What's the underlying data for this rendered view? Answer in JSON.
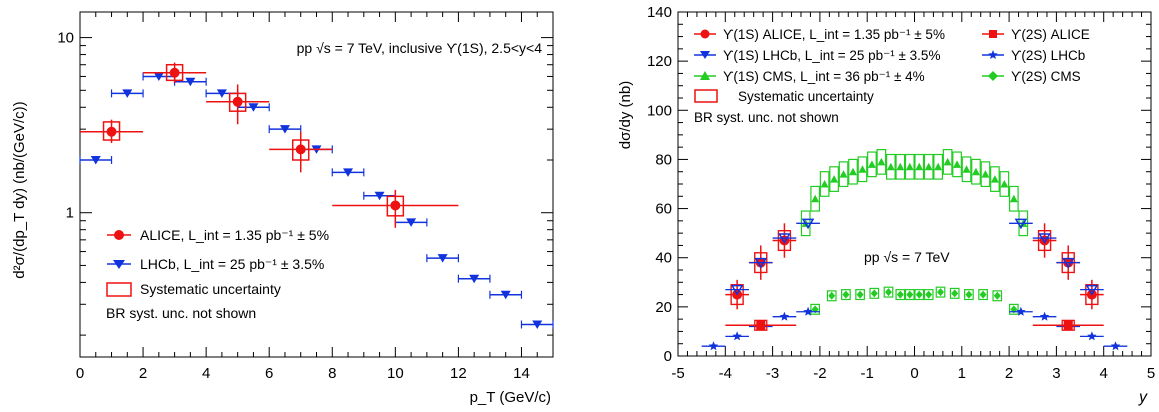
{
  "chart_data": [
    {
      "type": "scatter",
      "x_scale": "linear",
      "y_scale": "log",
      "xlim": [
        0,
        15
      ],
      "ylim": [
        0.15,
        14
      ],
      "xticks": [
        0,
        2,
        4,
        6,
        8,
        10,
        12,
        14
      ],
      "xtick_labels": [
        "0",
        "2",
        "4",
        "6",
        "8",
        "10",
        "12",
        "14"
      ],
      "ytick_major": [
        1,
        10
      ],
      "ytick_labels": [
        "1",
        "10"
      ],
      "xlabel": "p_T (GeV/c)",
      "ylabel": "d²σ/(dp_T dy) (nb/(GeV/c))",
      "annotation": "pp √s = 7 TeV, inclusive ϒ(1S), 2.5<y<4",
      "grid": false,
      "legend_position": "bottom-left",
      "legend": [
        {
          "label": "ALICE, L_int = 1.35 pb⁻¹ ± 5%",
          "marker": "circle",
          "color": "#ee1111"
        },
        {
          "label": "LHCb, L_int = 25 pb⁻¹ ± 3.5%",
          "marker": "triangle-down",
          "color": "#1133dd"
        },
        {
          "label": "Systematic uncertainty",
          "marker": "open-box",
          "color": "#ee1111"
        },
        {
          "label": "BR syst. unc. not shown",
          "marker": "none",
          "color": "#000000"
        }
      ],
      "series": [
        {
          "name": "ALICE",
          "color": "#ee1111",
          "marker": "circle",
          "points": [
            {
              "x": 1,
              "y": 2.9,
              "xerr": 1,
              "ylo": 2.5,
              "yhi": 3.4,
              "syslo": 2.6,
              "syshi": 3.3
            },
            {
              "x": 3,
              "y": 6.3,
              "xerr": 1,
              "ylo": 5.5,
              "yhi": 7.2,
              "syslo": 5.7,
              "syshi": 7.0
            },
            {
              "x": 5,
              "y": 4.3,
              "xerr": 1,
              "ylo": 3.2,
              "yhi": 5.4,
              "syslo": 3.8,
              "syshi": 4.8
            },
            {
              "x": 7,
              "y": 2.3,
              "xerr": 1,
              "ylo": 1.7,
              "yhi": 2.9,
              "syslo": 2.0,
              "syshi": 2.6
            },
            {
              "x": 10,
              "y": 1.1,
              "xerr": 2,
              "ylo": 0.82,
              "yhi": 1.35,
              "syslo": 0.96,
              "syshi": 1.24
            }
          ]
        },
        {
          "name": "LHCb",
          "color": "#1133dd",
          "marker": "triangle-down",
          "points": [
            {
              "x": 0.5,
              "y": 2.0,
              "xerr": 0.5
            },
            {
              "x": 1.5,
              "y": 4.8,
              "xerr": 0.5
            },
            {
              "x": 2.5,
              "y": 6.0,
              "xerr": 0.5
            },
            {
              "x": 3.5,
              "y": 5.6,
              "xerr": 0.5
            },
            {
              "x": 4.5,
              "y": 4.8,
              "xerr": 0.5
            },
            {
              "x": 5.5,
              "y": 4.0,
              "xerr": 0.5
            },
            {
              "x": 6.5,
              "y": 3.0,
              "xerr": 0.5
            },
            {
              "x": 7.5,
              "y": 2.3,
              "xerr": 0.5
            },
            {
              "x": 8.5,
              "y": 1.7,
              "xerr": 0.5
            },
            {
              "x": 9.5,
              "y": 1.25,
              "xerr": 0.5
            },
            {
              "x": 10.5,
              "y": 0.88,
              "xerr": 0.5
            },
            {
              "x": 11.5,
              "y": 0.55,
              "xerr": 0.5
            },
            {
              "x": 12.5,
              "y": 0.42,
              "xerr": 0.5
            },
            {
              "x": 13.5,
              "y": 0.34,
              "xerr": 0.5
            },
            {
              "x": 14.5,
              "y": 0.23,
              "xerr": 0.5
            }
          ]
        }
      ]
    },
    {
      "type": "scatter",
      "x_scale": "linear",
      "y_scale": "linear",
      "xlim": [
        -5,
        5
      ],
      "ylim": [
        0,
        140
      ],
      "xticks": [
        -5,
        -4,
        -3,
        -2,
        -1,
        0,
        1,
        2,
        3,
        4,
        5
      ],
      "xtick_labels": [
        "-5",
        "-4",
        "-3",
        "-2",
        "-1",
        "0",
        "1",
        "2",
        "3",
        "4",
        "5"
      ],
      "yticks": [
        0,
        20,
        40,
        60,
        80,
        100,
        120,
        140
      ],
      "ytick_labels": [
        "0",
        "20",
        "40",
        "60",
        "80",
        "100",
        "120",
        "140"
      ],
      "xlabel": "y",
      "ylabel": "dσ/dy (nb)",
      "annotation": "pp √s = 7 TeV",
      "grid": false,
      "legend_position": "top-left",
      "legend": [
        {
          "label": "ϒ(1S) ALICE, L_int = 1.35 pb⁻¹ ± 5%",
          "marker": "circle",
          "color": "#ee1111"
        },
        {
          "label": "ϒ(1S) LHCb, L_int = 25 pb⁻¹ ± 3.5%",
          "marker": "triangle-down",
          "color": "#1133dd"
        },
        {
          "label": "ϒ(1S) CMS, L_int = 36 pb⁻¹ ± 4%",
          "marker": "triangle-up",
          "color": "#22cc22"
        },
        {
          "label": "ϒ(2S) ALICE",
          "marker": "square",
          "color": "#ee1111"
        },
        {
          "label": "ϒ(2S) LHCb",
          "marker": "star",
          "color": "#1133dd"
        },
        {
          "label": "ϒ(2S) CMS",
          "marker": "diamond",
          "color": "#22cc22"
        },
        {
          "label": "Systematic uncertainty",
          "marker": "open-box",
          "color": "#ee1111"
        },
        {
          "label": "BR syst. unc. not shown",
          "marker": "none",
          "color": "#000000"
        }
      ],
      "series": [
        {
          "name": "ϒ(1S) ALICE",
          "color": "#ee1111",
          "marker": "circle",
          "points": [
            {
              "x": -3.75,
              "y": 25,
              "xerr": 0.25,
              "ylo": 19,
              "yhi": 31,
              "syslo": 21,
              "syshi": 29
            },
            {
              "x": -3.25,
              "y": 38,
              "xerr": 0.25,
              "ylo": 31,
              "yhi": 45,
              "syslo": 34,
              "syshi": 42
            },
            {
              "x": -2.75,
              "y": 47,
              "xerr": 0.25,
              "ylo": 40,
              "yhi": 54,
              "syslo": 43,
              "syshi": 51
            },
            {
              "x": 2.75,
              "y": 47,
              "xerr": 0.25,
              "ylo": 40,
              "yhi": 54,
              "syslo": 43,
              "syshi": 51
            },
            {
              "x": 3.25,
              "y": 38,
              "xerr": 0.25,
              "ylo": 31,
              "yhi": 45,
              "syslo": 34,
              "syshi": 42
            },
            {
              "x": 3.75,
              "y": 25,
              "xerr": 0.25,
              "ylo": 19,
              "yhi": 31,
              "syslo": 21,
              "syshi": 29
            }
          ]
        },
        {
          "name": "ϒ(1S) LHCb",
          "color": "#1133dd",
          "marker": "triangle-down",
          "points": [
            {
              "x": -3.75,
              "y": 27,
              "xerr": 0.25
            },
            {
              "x": -3.25,
              "y": 38,
              "xerr": 0.25
            },
            {
              "x": -2.75,
              "y": 48,
              "xerr": 0.25
            },
            {
              "x": -2.25,
              "y": 54,
              "xerr": 0.25
            },
            {
              "x": 2.25,
              "y": 54,
              "xerr": 0.25
            },
            {
              "x": 2.75,
              "y": 48,
              "xerr": 0.25
            },
            {
              "x": 3.25,
              "y": 38,
              "xerr": 0.25
            },
            {
              "x": 3.75,
              "y": 27,
              "xerr": 0.25
            }
          ]
        },
        {
          "name": "ϒ(1S) CMS",
          "color": "#22cc22",
          "marker": "triangle-up",
          "points": [
            {
              "x": -2.3,
              "y": 54
            },
            {
              "x": -2.1,
              "y": 64
            },
            {
              "x": -1.9,
              "y": 70
            },
            {
              "x": -1.7,
              "y": 72
            },
            {
              "x": -1.5,
              "y": 74
            },
            {
              "x": -1.3,
              "y": 75
            },
            {
              "x": -1.1,
              "y": 76
            },
            {
              "x": -0.9,
              "y": 78
            },
            {
              "x": -0.7,
              "y": 79
            },
            {
              "x": -0.5,
              "y": 77
            },
            {
              "x": -0.3,
              "y": 77
            },
            {
              "x": -0.1,
              "y": 77
            },
            {
              "x": 0.1,
              "y": 77
            },
            {
              "x": 0.3,
              "y": 77
            },
            {
              "x": 0.5,
              "y": 77
            },
            {
              "x": 0.7,
              "y": 79
            },
            {
              "x": 0.9,
              "y": 78
            },
            {
              "x": 1.1,
              "y": 76
            },
            {
              "x": 1.3,
              "y": 75
            },
            {
              "x": 1.5,
              "y": 74
            },
            {
              "x": 1.7,
              "y": 72
            },
            {
              "x": 1.9,
              "y": 70
            },
            {
              "x": 2.1,
              "y": 64
            },
            {
              "x": 2.3,
              "y": 54
            }
          ],
          "sys_half_width": 0.09,
          "sys_half_height": 5
        },
        {
          "name": "ϒ(2S) ALICE",
          "color": "#ee1111",
          "marker": "square",
          "points": [
            {
              "x": -3.25,
              "y": 12.5,
              "xerr": 0.75,
              "ylo": 10.5,
              "yhi": 14.5
            },
            {
              "x": 3.25,
              "y": 12.5,
              "xerr": 0.75,
              "ylo": 10.5,
              "yhi": 14.5
            }
          ]
        },
        {
          "name": "ϒ(2S) LHCb",
          "color": "#1133dd",
          "marker": "star",
          "points": [
            {
              "x": -4.25,
              "y": 4,
              "xerr": 0.25
            },
            {
              "x": -3.75,
              "y": 8,
              "xerr": 0.25
            },
            {
              "x": -3.25,
              "y": 12,
              "xerr": 0.25
            },
            {
              "x": -2.75,
              "y": 16,
              "xerr": 0.25
            },
            {
              "x": -2.25,
              "y": 18,
              "xerr": 0.25
            },
            {
              "x": 2.25,
              "y": 18,
              "xerr": 0.25
            },
            {
              "x": 2.75,
              "y": 16,
              "xerr": 0.25
            },
            {
              "x": 3.25,
              "y": 12,
              "xerr": 0.25
            },
            {
              "x": 3.75,
              "y": 8,
              "xerr": 0.25
            },
            {
              "x": 4.25,
              "y": 4,
              "xerr": 0.25
            }
          ]
        },
        {
          "name": "ϒ(2S) CMS",
          "color": "#22cc22",
          "marker": "diamond",
          "points": [
            {
              "x": -2.1,
              "y": 19
            },
            {
              "x": -1.75,
              "y": 24.5
            },
            {
              "x": -1.45,
              "y": 25
            },
            {
              "x": -1.15,
              "y": 25
            },
            {
              "x": -0.85,
              "y": 25.5
            },
            {
              "x": -0.55,
              "y": 26
            },
            {
              "x": -0.3,
              "y": 25
            },
            {
              "x": -0.1,
              "y": 25
            },
            {
              "x": 0.1,
              "y": 25
            },
            {
              "x": 0.3,
              "y": 25
            },
            {
              "x": 0.55,
              "y": 26
            },
            {
              "x": 0.85,
              "y": 25.5
            },
            {
              "x": 1.15,
              "y": 25
            },
            {
              "x": 1.45,
              "y": 25
            },
            {
              "x": 1.75,
              "y": 24.5
            },
            {
              "x": 2.1,
              "y": 19
            }
          ],
          "sys_half_width": 0.09,
          "sys_half_height": 2
        }
      ]
    }
  ]
}
